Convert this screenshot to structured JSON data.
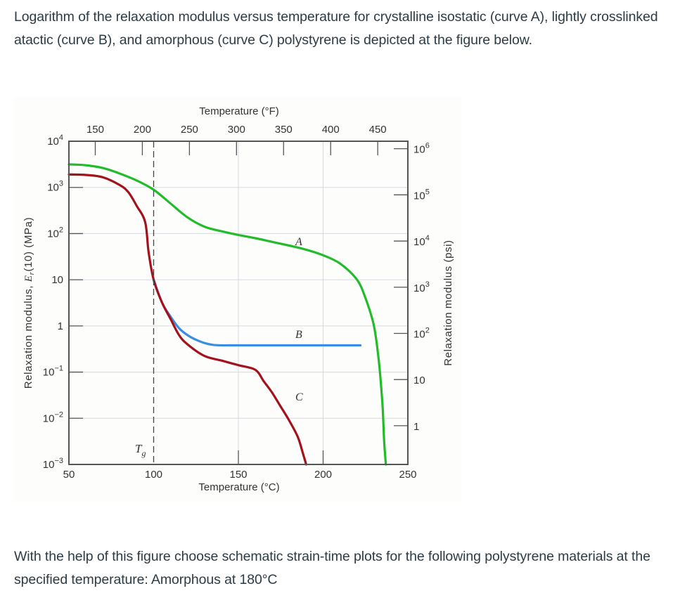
{
  "intro_text": "Logarithm of the relaxation modulus versus temperature for crystalline isostatic (curve A), lightly crosslinked atactic (curve B), and amorphous (curve C) polystyrene is depicted at the figure below.",
  "question_text": "With the help of this figure choose schematic strain-time plots for the following polystyrene materials at the specified temperature: Amorphous at 180°C",
  "figure": {
    "top_axis_title": "Temperature (°F)",
    "bottom_axis_title": "Temperature (°C)",
    "left_axis_title_pre": "Relaxation modulus, ",
    "left_axis_title_sym": "E",
    "left_axis_title_sub": "r",
    "left_axis_title_post": "(10) (MPa)",
    "right_axis_title": "Relaxation modulus (psi)",
    "tg_label": "T",
    "tg_sub": "g",
    "curve_labels": {
      "A": "A",
      "B": "B",
      "C": "C"
    },
    "colors": {
      "A": "#22bb2a",
      "B": "#3a8de0",
      "C": "#a3121c",
      "grid": "#d6d9e3",
      "axis": "#555555"
    }
  },
  "chart_data": {
    "type": "line",
    "title": "",
    "xlabel": "Temperature (°C)",
    "x2label": "Temperature (°F)",
    "ylabel": "Relaxation modulus, Er(10) (MPa)",
    "y2label": "Relaxation modulus (psi)",
    "xlim": [
      50,
      250
    ],
    "ylim_log10": [
      -3,
      4
    ],
    "yscale": "log",
    "grid": true,
    "x_ticks": [
      50,
      100,
      150,
      200,
      250
    ],
    "x2_ticks_F": [
      150,
      200,
      250,
      300,
      350,
      400,
      450
    ],
    "y_ticks": [
      "10^4",
      "10^3",
      "10^2",
      "10",
      "1",
      "10^-1",
      "10^-2",
      "10^-3"
    ],
    "y2_ticks_psi": [
      "10^6",
      "10^5",
      "10^4",
      "10^3",
      "10^2",
      "10",
      "1"
    ],
    "annotations": [
      {
        "text": "Tg",
        "x": 100,
        "style": "dashed vertical line"
      }
    ],
    "series": [
      {
        "name": "A (crystalline isotactic)",
        "x": [
          50,
          60,
          70,
          80,
          90,
          100,
          110,
          120,
          130,
          140,
          150,
          160,
          170,
          180,
          190,
          200,
          210,
          220,
          225,
          230,
          233,
          235,
          236,
          237
        ],
        "log10_y": [
          3.5,
          3.48,
          3.42,
          3.3,
          3.15,
          2.95,
          2.65,
          2.35,
          2.15,
          2.05,
          1.97,
          1.9,
          1.82,
          1.74,
          1.65,
          1.53,
          1.35,
          1.0,
          0.6,
          0.0,
          -0.8,
          -1.7,
          -2.5,
          -3.0
        ]
      },
      {
        "name": "B (lightly crosslinked atactic)",
        "x": [
          100,
          105,
          110,
          115,
          120,
          125,
          130,
          135,
          140,
          150,
          175,
          200,
          222
        ],
        "log10_y": [
          1.0,
          0.5,
          0.2,
          -0.05,
          -0.2,
          -0.3,
          -0.37,
          -0.41,
          -0.42,
          -0.42,
          -0.42,
          -0.42,
          -0.42
        ]
      },
      {
        "name": "C (amorphous)",
        "x": [
          50,
          60,
          70,
          80,
          85,
          90,
          95,
          97,
          100,
          105,
          110,
          115,
          120,
          130,
          140,
          150,
          160,
          165,
          170,
          175,
          180,
          185,
          188,
          190
        ],
        "log10_y": [
          3.28,
          3.27,
          3.22,
          3.05,
          2.9,
          2.6,
          2.25,
          1.6,
          1.0,
          0.5,
          0.15,
          -0.2,
          -0.4,
          -0.65,
          -0.75,
          -0.85,
          -0.95,
          -1.2,
          -1.45,
          -1.75,
          -2.05,
          -2.4,
          -2.75,
          -3.0
        ]
      }
    ]
  }
}
